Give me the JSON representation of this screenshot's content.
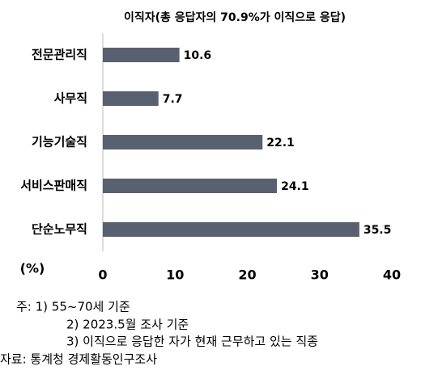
{
  "chart_data": {
    "type": "bar",
    "orientation": "horizontal",
    "title": "이직자(총 응답자의 70.9%가 이직으로 응답)",
    "categories": [
      "전문관리직",
      "사무직",
      "기능기술직",
      "서비스판매직",
      "단순노무직"
    ],
    "values": [
      10.6,
      7.7,
      22.1,
      24.1,
      35.5
    ],
    "color": "#59606f",
    "xlabel": "(%)",
    "xlim": [
      0,
      40
    ],
    "xticks": [
      0,
      10,
      20,
      30,
      40
    ]
  },
  "notes": [
    "주: 1) 55~70세 기준",
    "2) 2023.5월 조사 기준",
    "3) 이직으로 응답한 자가 현재 근무하고 있는 직종",
    "자료: 통계청 경제활동인구조사"
  ]
}
